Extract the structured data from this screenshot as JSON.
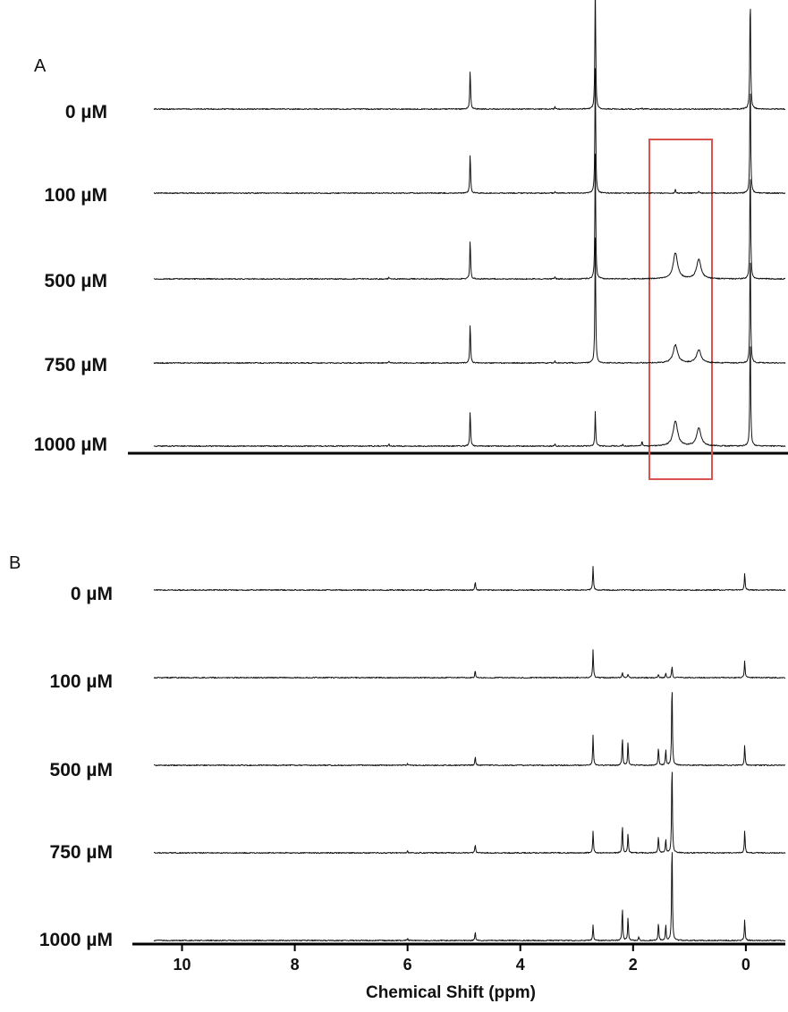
{
  "chart_data": {
    "type": "line",
    "xlabel": "Chemical Shift (ppm)",
    "x_ticks": [
      "10",
      "8",
      "6",
      "4",
      "2",
      "0"
    ],
    "x_tick_values": [
      10,
      8,
      6,
      4,
      2,
      0
    ],
    "x_reversed": true,
    "panels": [
      {
        "label": "A",
        "xlim": [
          10.2,
          -0.6
        ],
        "highlight_box": {
          "from_ppm": 1.62,
          "to_ppm": 0.55,
          "color": "#d9534f"
        },
        "traces": [
          {
            "name": "0 µM",
            "peaks": [
              [
                4.79,
                0.96
              ],
              [
                3.34,
                0.05
              ],
              [
                2.65,
                3.0
              ],
              [
                1.85,
                0.03
              ],
              [
                0.0,
                2.8
              ]
            ]
          },
          {
            "name": "100 µM",
            "peaks": [
              [
                4.79,
                0.96
              ],
              [
                3.34,
                0.05
              ],
              [
                2.65,
                3.0
              ],
              [
                1.28,
                0.1
              ],
              [
                0.88,
                0.06
              ],
              [
                0.0,
                2.8
              ]
            ]
          },
          {
            "name": "500 µM",
            "peaks": [
              [
                6.18,
                0.04
              ],
              [
                4.79,
                0.96
              ],
              [
                3.34,
                0.05
              ],
              [
                2.65,
                3.0
              ],
              [
                1.28,
                0.62
              ],
              [
                0.88,
                0.46
              ],
              [
                0.0,
                2.8
              ]
            ]
          },
          {
            "name": "750 µM",
            "peaks": [
              [
                6.18,
                0.04
              ],
              [
                4.79,
                0.96
              ],
              [
                3.34,
                0.05
              ],
              [
                2.65,
                3.0
              ],
              [
                1.28,
                0.43
              ],
              [
                0.88,
                0.31
              ],
              [
                0.0,
                2.8
              ]
            ]
          },
          {
            "name": "1000 µM",
            "peaks": [
              [
                6.18,
                0.05
              ],
              [
                4.79,
                0.87
              ],
              [
                3.34,
                0.05
              ],
              [
                2.65,
                0.82
              ],
              [
                2.18,
                0.05
              ],
              [
                1.85,
                0.12
              ],
              [
                1.28,
                0.6
              ],
              [
                0.88,
                0.43
              ],
              [
                0.0,
                2.8
              ]
            ]
          }
        ]
      },
      {
        "label": "B",
        "xlim": [
          10.5,
          -0.7
        ],
        "traces": [
          {
            "name": "0 µM",
            "peaks": [
              [
                4.8,
                0.25
              ],
              [
                2.71,
                0.71
              ],
              [
                0.02,
                0.51
              ]
            ]
          },
          {
            "name": "100 µM",
            "peaks": [
              [
                4.8,
                0.22
              ],
              [
                2.71,
                0.83
              ],
              [
                2.19,
                0.16
              ],
              [
                2.09,
                0.1
              ],
              [
                1.55,
                0.1
              ],
              [
                1.42,
                0.12
              ],
              [
                1.31,
                0.35
              ],
              [
                0.02,
                0.51
              ]
            ]
          },
          {
            "name": "500 µM",
            "peaks": [
              [
                6.0,
                0.06
              ],
              [
                4.8,
                0.26
              ],
              [
                2.71,
                0.89
              ],
              [
                2.19,
                0.84
              ],
              [
                2.09,
                0.69
              ],
              [
                1.55,
                0.54
              ],
              [
                1.42,
                0.46
              ],
              [
                1.31,
                2.5
              ],
              [
                0.02,
                0.6
              ]
            ]
          },
          {
            "name": "750 µM",
            "peaks": [
              [
                6.0,
                0.06
              ],
              [
                4.8,
                0.25
              ],
              [
                2.71,
                0.66
              ],
              [
                2.19,
                0.84
              ],
              [
                2.09,
                0.58
              ],
              [
                1.55,
                0.5
              ],
              [
                1.42,
                0.41
              ],
              [
                1.31,
                2.75
              ],
              [
                0.02,
                0.67
              ]
            ]
          },
          {
            "name": "1000 µM",
            "peaks": [
              [
                6.0,
                0.06
              ],
              [
                4.8,
                0.26
              ],
              [
                2.71,
                0.45
              ],
              [
                2.19,
                0.98
              ],
              [
                2.09,
                0.69
              ],
              [
                1.9,
                0.1
              ],
              [
                1.55,
                0.54
              ],
              [
                1.42,
                0.46
              ],
              [
                1.31,
                3.0
              ],
              [
                0.02,
                0.63
              ]
            ]
          }
        ]
      }
    ]
  }
}
